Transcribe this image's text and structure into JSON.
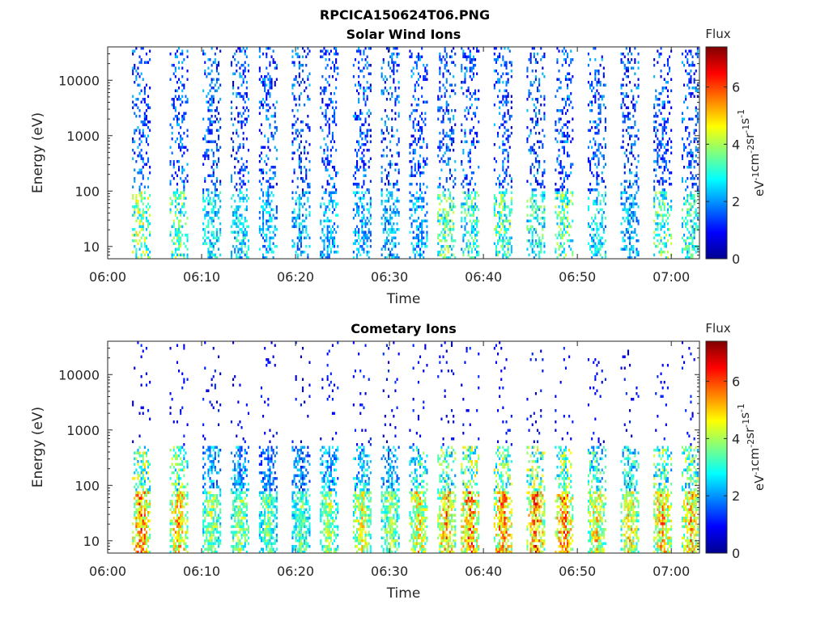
{
  "figure": {
    "title": "RPCICA150624T06.PNG"
  },
  "chart_data": [
    {
      "type": "heatmap",
      "title": "Solar Wind Ions",
      "xlabel": "Time",
      "ylabel": "Energy (eV)",
      "x_ticks": [
        "06:00",
        "06:10",
        "06:20",
        "06:30",
        "06:40",
        "06:50",
        "07:00"
      ],
      "y_ticks": [
        "10",
        "100",
        "1000",
        "10000"
      ],
      "y_scale": "log",
      "xlim_minutes_after_0600": [
        0,
        63
      ],
      "ylim": [
        6,
        40000
      ],
      "colorbar": {
        "title": "Flux",
        "label": "eV^-1 cm^-2 sr^-1 s^-1",
        "ticks": [
          "0",
          "2",
          "4",
          "6"
        ],
        "range": [
          0,
          7.4
        ],
        "colormap": "jet"
      },
      "bursts": [
        {
          "t": 3.5,
          "peak": 5.0
        },
        {
          "t": 7.5,
          "peak": 4.5
        },
        {
          "t": 11.0,
          "peak": 3.5
        },
        {
          "t": 14.0,
          "peak": 3.5
        },
        {
          "t": 17.0,
          "peak": 3.0
        },
        {
          "t": 20.5,
          "peak": 3.0
        },
        {
          "t": 23.5,
          "peak": 3.0
        },
        {
          "t": 27.0,
          "peak": 3.0
        },
        {
          "t": 30.0,
          "peak": 3.0
        },
        {
          "t": 33.0,
          "peak": 3.0
        },
        {
          "t": 36.0,
          "peak": 4.5
        },
        {
          "t": 38.5,
          "peak": 4.0
        },
        {
          "t": 42.0,
          "peak": 4.5
        },
        {
          "t": 45.5,
          "peak": 4.0
        },
        {
          "t": 48.5,
          "peak": 4.5
        },
        {
          "t": 52.0,
          "peak": 3.5
        },
        {
          "t": 55.5,
          "peak": 3.0
        },
        {
          "t": 59.0,
          "peak": 4.5
        },
        {
          "t": 62.0,
          "peak": 4.0
        }
      ],
      "grid": false
    },
    {
      "type": "heatmap",
      "title": "Cometary Ions",
      "xlabel": "Time",
      "ylabel": "Energy (eV)",
      "x_ticks": [
        "06:00",
        "06:10",
        "06:20",
        "06:30",
        "06:40",
        "06:50",
        "07:00"
      ],
      "y_ticks": [
        "10",
        "100",
        "1000",
        "10000"
      ],
      "y_scale": "log",
      "xlim_minutes_after_0600": [
        0,
        63
      ],
      "ylim": [
        6,
        40000
      ],
      "colorbar": {
        "title": "Flux",
        "label": "eV^-1 cm^-2 sr^-1 s^-1",
        "ticks": [
          "0",
          "2",
          "4",
          "6"
        ],
        "range": [
          0,
          7.4
        ],
        "colormap": "jet"
      },
      "bursts": [
        {
          "t": 3.5,
          "peak": 7.0
        },
        {
          "t": 7.5,
          "peak": 6.5
        },
        {
          "t": 11.0,
          "peak": 5.0
        },
        {
          "t": 14.0,
          "peak": 5.0
        },
        {
          "t": 17.0,
          "peak": 4.5
        },
        {
          "t": 20.5,
          "peak": 4.5
        },
        {
          "t": 23.5,
          "peak": 5.0
        },
        {
          "t": 27.0,
          "peak": 5.5
        },
        {
          "t": 30.0,
          "peak": 5.0
        },
        {
          "t": 33.0,
          "peak": 6.0
        },
        {
          "t": 36.0,
          "peak": 6.5
        },
        {
          "t": 38.5,
          "peak": 7.0
        },
        {
          "t": 42.0,
          "peak": 7.0
        },
        {
          "t": 45.5,
          "peak": 7.0
        },
        {
          "t": 48.5,
          "peak": 7.0
        },
        {
          "t": 52.0,
          "peak": 6.0
        },
        {
          "t": 55.5,
          "peak": 6.0
        },
        {
          "t": 59.0,
          "peak": 6.5
        },
        {
          "t": 62.0,
          "peak": 6.5
        }
      ],
      "grid": false
    }
  ]
}
